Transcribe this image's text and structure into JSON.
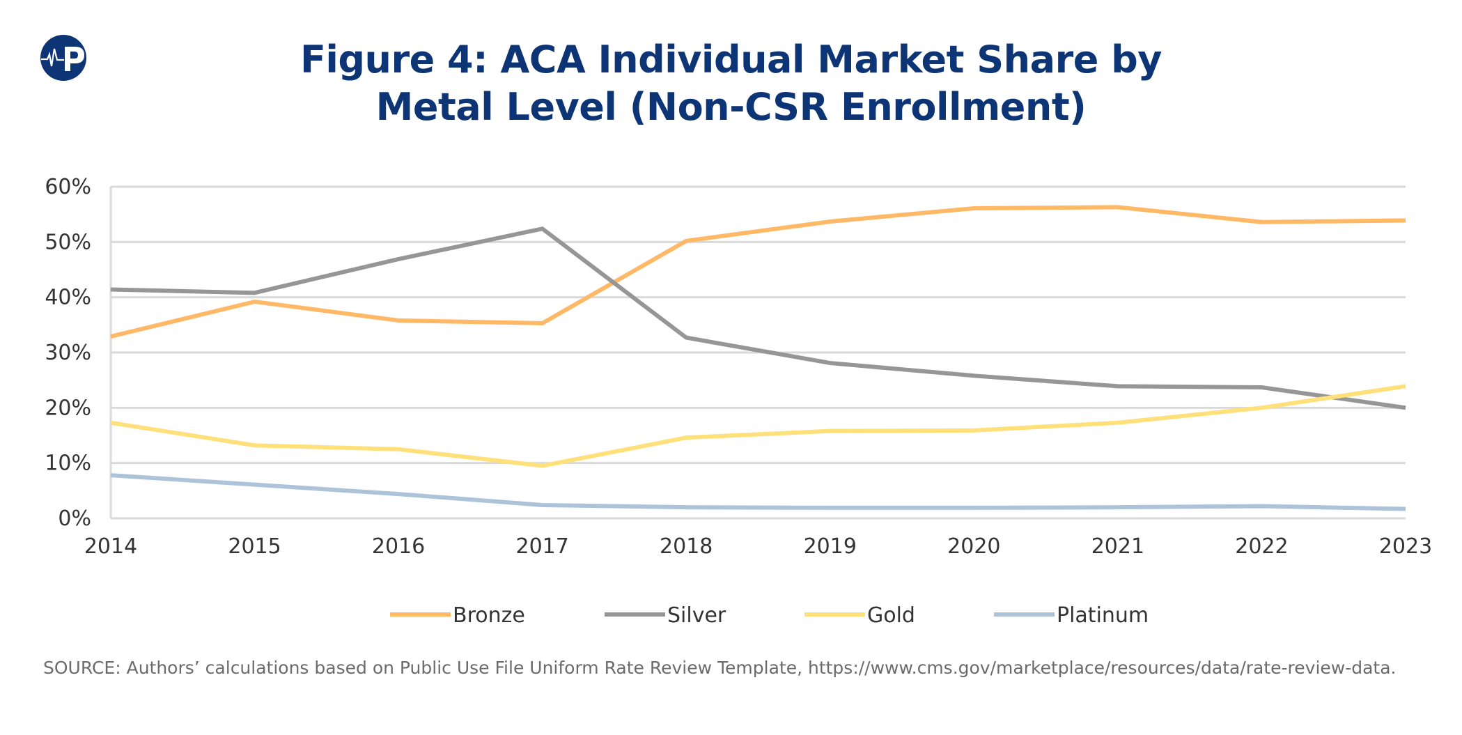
{
  "title_line1": "Figure 4: ACA Individual Market Share by",
  "title_line2": "Metal Level (Non-CSR Enrollment)",
  "logo": {
    "icon": "heartbeat-p-logo",
    "color": "#0d3575"
  },
  "source": "SOURCE: Authors’ calculations based on Public Use File Uniform Rate Review Template, https://www.cms.gov/marketplace/resources/data/rate-review-data.",
  "chart_data": {
    "type": "line",
    "title": "Figure 4: ACA Individual Market Share by Metal Level (Non-CSR Enrollment)",
    "x": [
      "2014",
      "2015",
      "2016",
      "2017",
      "2018",
      "2019",
      "2020",
      "2021",
      "2022",
      "2023"
    ],
    "ylim": [
      0,
      60
    ],
    "yticks": [
      "0%",
      "10%",
      "20%",
      "30%",
      "40%",
      "50%",
      "60%"
    ],
    "grid": true,
    "legend": "bottom",
    "series": [
      {
        "name": "Bronze",
        "color": "#FFB866",
        "values": [
          32.9,
          39.2,
          35.8,
          35.3,
          50.2,
          53.7,
          56.1,
          56.3,
          53.6,
          53.9
        ]
      },
      {
        "name": "Silver",
        "color": "#969696",
        "values": [
          41.4,
          40.8,
          46.9,
          52.4,
          32.7,
          28.1,
          25.8,
          23.9,
          23.7,
          20.0
        ]
      },
      {
        "name": "Gold",
        "color": "#FFE07A",
        "values": [
          17.3,
          13.2,
          12.5,
          9.5,
          14.6,
          15.8,
          15.9,
          17.3,
          20.0,
          23.9
        ]
      },
      {
        "name": "Platinum",
        "color": "#ADC3DA",
        "values": [
          7.8,
          6.1,
          4.4,
          2.4,
          2.0,
          1.9,
          1.9,
          2.0,
          2.2,
          1.7
        ]
      }
    ]
  }
}
